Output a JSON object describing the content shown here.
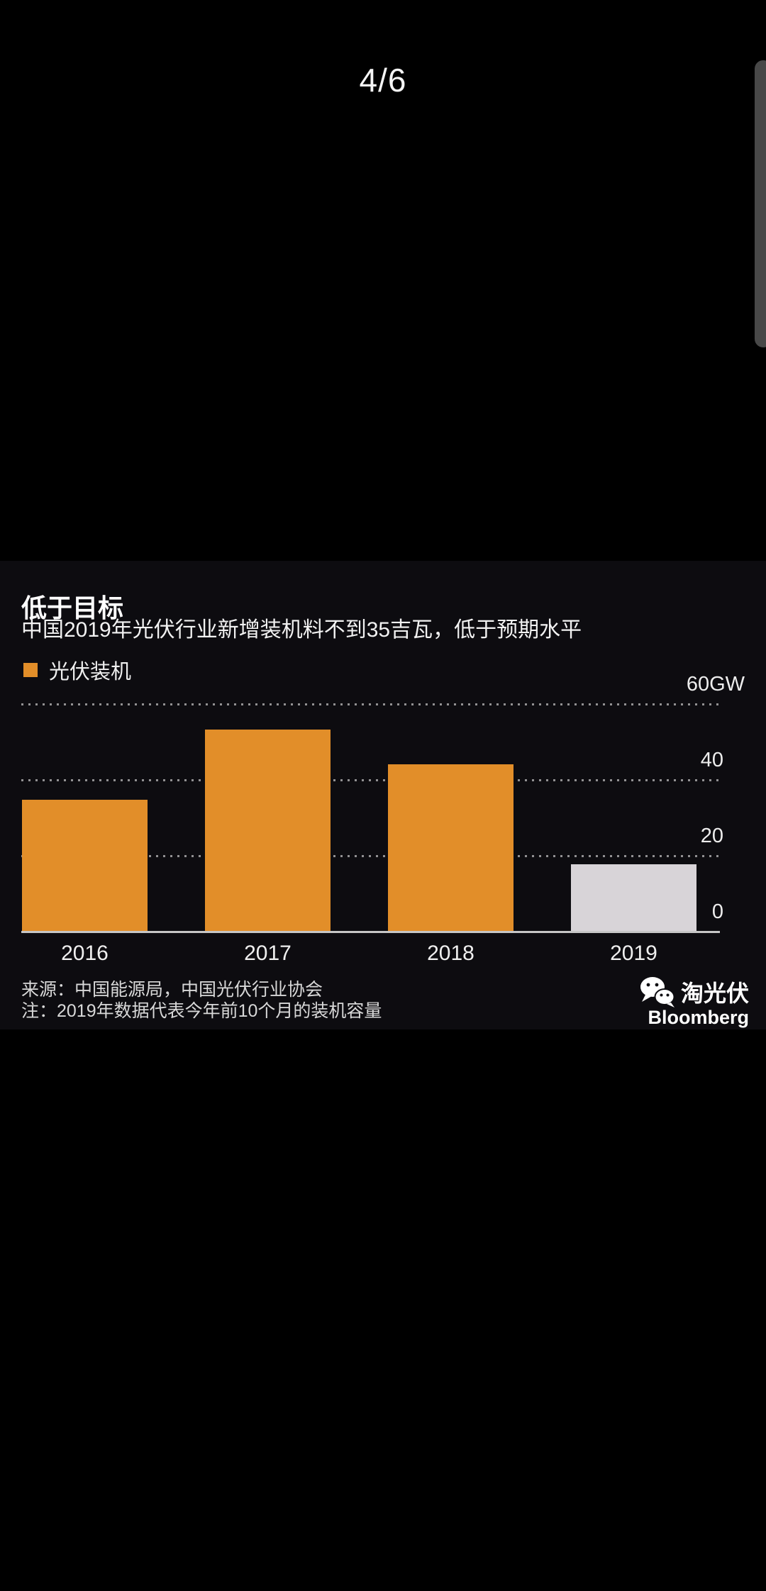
{
  "pager": {
    "label": "4/6"
  },
  "chart": {
    "title": "低于目标",
    "subtitle": "中国2019年光伏行业新增装机料不到35吉瓦，低于预期水平",
    "legend": {
      "label": "光伏装机",
      "color": "#E28E29"
    },
    "source": "来源：中国能源局，中国光伏行业协会",
    "note": "注：2019年数据代表今年前10个月的装机容量",
    "branding": {
      "account": "淘光伏",
      "provider": "Bloomberg"
    }
  },
  "chart_data": {
    "type": "bar",
    "categories": [
      "2016",
      "2017",
      "2018",
      "2019"
    ],
    "values": [
      34.5,
      53,
      44,
      17.5
    ],
    "bar_colors": [
      "#E28E29",
      "#E28E29",
      "#E28E29",
      "#D8D4D8"
    ],
    "title": "低于目标",
    "subtitle": "中国2019年光伏行业新增装机料不到35吉瓦，低于预期水平",
    "xlabel": "",
    "ylabel": "GW",
    "ylim": [
      0,
      60
    ],
    "yticks": [
      {
        "value": 60,
        "label": "60GW",
        "unit_attached": true
      },
      {
        "value": 40,
        "label": "40",
        "unit_attached": false
      },
      {
        "value": 20,
        "label": "20",
        "unit_attached": false
      },
      {
        "value": 0,
        "label": "0",
        "unit_attached": false
      }
    ],
    "grid": "horizontal-dotted",
    "legend_position": "top-left",
    "series_name": "光伏装机",
    "note_series_color_exception": "2019 bar shown in gray to indicate partial-year data"
  },
  "colors": {
    "panel_bg": "#0d0c10",
    "outer_bg": "#000000",
    "baseline": "#c6c6c6",
    "accent_orange": "#E28E29",
    "partial_gray": "#D8D4D8"
  }
}
